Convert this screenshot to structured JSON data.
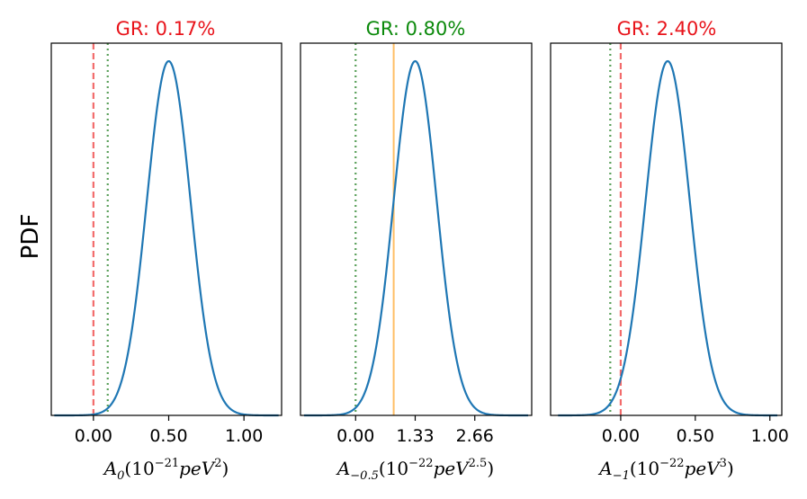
{
  "figure": {
    "ylabel": "PDF"
  },
  "colors": {
    "curve": "#1f77b4",
    "red_line": "#f26b6b",
    "green_line": "#5aa05a",
    "orange_line": "#ffbf66",
    "title_red": "#e8141b",
    "title_green": "#0c8a0c"
  },
  "chart_data": [
    {
      "type": "line",
      "title": "GR: 0.17%",
      "title_color": "#e8141b",
      "xlabel": "A_0(10^{-21} peV^2)",
      "xlabel_base": "A",
      "xlabel_sub": "0",
      "xlabel_paren_open": "(10",
      "xlabel_exp": "−21",
      "xlabel_unit": "peV",
      "xlabel_unit_exp": "2",
      "xlabel_close": ")",
      "xlim": [
        -0.28,
        1.25
      ],
      "ylim": [
        0,
        1.0
      ],
      "xticks": [
        0.0,
        0.5,
        1.0
      ],
      "xtick_labels": [
        "0.00",
        "0.50",
        "1.00"
      ],
      "curve": {
        "mean": 0.5,
        "sigma": 0.145,
        "peak": 1.0,
        "x_range": [
          -0.26,
          1.23
        ]
      },
      "vlines": [
        {
          "x": 0.0,
          "style": "dashed",
          "color": "#f26b6b"
        },
        {
          "x": 0.095,
          "style": "dotted",
          "color": "#5aa05a"
        }
      ]
    },
    {
      "type": "line",
      "title": "GR: 0.80%",
      "title_color": "#0c8a0c",
      "xlabel": "A_{-0.5}(10^{-22} peV^{2.5})",
      "xlabel_base": "A",
      "xlabel_sub": "−0.5",
      "xlabel_paren_open": "(10",
      "xlabel_exp": "−22",
      "xlabel_unit": "peV",
      "xlabel_unit_exp": "2.5",
      "xlabel_close": ")",
      "xlim": [
        -1.23,
        3.93
      ],
      "ylim": [
        0,
        1.0
      ],
      "xticks": [
        0.0,
        1.33,
        2.66
      ],
      "xtick_labels": [
        "0.00",
        "1.33",
        "2.66"
      ],
      "curve": {
        "mean": 1.33,
        "sigma": 0.48,
        "peak": 1.0,
        "x_range": [
          -1.15,
          3.85
        ]
      },
      "vlines": [
        {
          "x": 0.0,
          "style": "dotted",
          "color": "#5aa05a"
        },
        {
          "x": 0.85,
          "style": "solid",
          "color": "#ffbf66"
        }
      ]
    },
    {
      "type": "line",
      "title": "GR: 2.40%",
      "title_color": "#e8141b",
      "xlabel": "A_{-1}(10^{-22} peV^3)",
      "xlabel_base": "A",
      "xlabel_sub": "−1",
      "xlabel_paren_open": "(10",
      "xlabel_exp": "−22",
      "xlabel_unit": "peV",
      "xlabel_unit_exp": "3",
      "xlabel_close": ")",
      "xlim": [
        -0.47,
        1.08
      ],
      "ylim": [
        0,
        1.0
      ],
      "xticks": [
        0.0,
        0.5,
        1.0
      ],
      "xtick_labels": [
        "0.00",
        "0.50",
        "1.00"
      ],
      "curve": {
        "mean": 0.315,
        "sigma": 0.148,
        "peak": 1.0,
        "x_range": [
          -0.42,
          1.05
        ]
      },
      "vlines": [
        {
          "x": -0.07,
          "style": "dotted",
          "color": "#5aa05a"
        },
        {
          "x": 0.0,
          "style": "dashed",
          "color": "#f26b6b"
        }
      ]
    }
  ]
}
